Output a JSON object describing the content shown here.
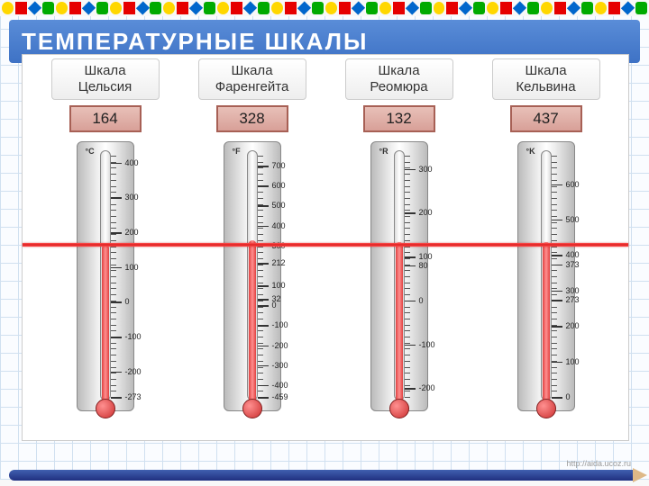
{
  "title": "ТЕМПЕРАТУРНЫЕ  ШКАЛЫ",
  "footer_url": "http://aida.ucoz.ru",
  "red_line_temp_c": 164,
  "border_colors": [
    "#ffd700",
    "#e60000",
    "#0066cc",
    "#00aa00",
    "#ffd700",
    "#e60000",
    "#0066cc",
    "#00aa00"
  ],
  "scales": [
    {
      "name": "Шкала<br>Цельсия",
      "unit": "°C",
      "display_value": "164",
      "min": -273,
      "max": 420,
      "major_ticks": [
        400,
        300,
        200,
        100,
        0,
        -100,
        -200,
        -273
      ],
      "fluid_value": 164,
      "fluid_color": "#e04040"
    },
    {
      "name": "Шкала<br>Фаренгейта",
      "unit": "°F",
      "display_value": "328",
      "min": -459,
      "max": 750,
      "major_ticks": [
        700,
        600,
        500,
        400,
        300,
        212,
        100,
        32,
        0,
        -100,
        -200,
        -300,
        -400,
        -459
      ],
      "fluid_value": 328,
      "fluid_color": "#e04040"
    },
    {
      "name": "Шкала<br>Реомюра",
      "unit": "°R",
      "display_value": "132",
      "min": -220,
      "max": 330,
      "major_ticks": [
        300,
        200,
        100,
        80,
        0,
        -100,
        -200
      ],
      "fluid_value": 132,
      "fluid_color": "#e04040"
    },
    {
      "name": "Шкала<br>Кельвина",
      "unit": "°K",
      "display_value": "437",
      "min": 0,
      "max": 680,
      "major_ticks": [
        600,
        500,
        400,
        373,
        300,
        273,
        200,
        100,
        0
      ],
      "fluid_value": 437,
      "fluid_color": "#e04040"
    }
  ]
}
